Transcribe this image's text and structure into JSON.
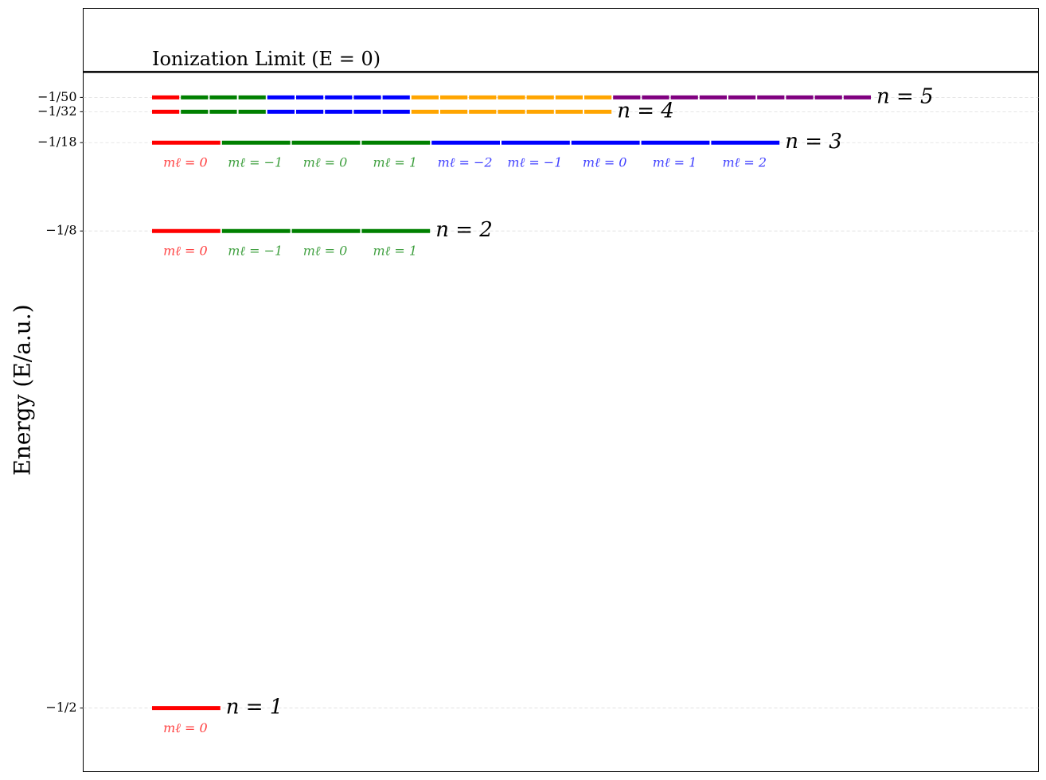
{
  "chart_data": {
    "type": "energy-levels",
    "y_label": "Energy (E/a.u.)",
    "ylim": [
      -0.55,
      0.05
    ],
    "yticks": [
      {
        "value": -0.5,
        "label": "−1/2"
      },
      {
        "value": -0.125,
        "label": "−1/8"
      },
      {
        "value": -0.05555555555555555,
        "label": "−1/18"
      },
      {
        "value": -0.03125,
        "label": "−1/32"
      },
      {
        "value": -0.02,
        "label": "−1/50"
      }
    ],
    "grid": true,
    "ionization_limit": {
      "label": "Ionization Limit (E = 0)",
      "value": 0
    },
    "series": [
      {
        "name": "n = 1",
        "value": -0.5,
        "segment_colors": [
          "#ff0000"
        ],
        "m_labels": [
          "mℓ = 0"
        ]
      },
      {
        "name": "n = 2",
        "value": -0.125,
        "segment_colors": [
          "#ff0000",
          "#008000",
          "#008000",
          "#008000"
        ],
        "m_labels": [
          "mℓ = 0",
          "mℓ = −1",
          "mℓ = 0",
          "mℓ = 1"
        ]
      },
      {
        "name": "n = 3",
        "value": -0.05555555555555555,
        "segment_colors": [
          "#ff0000",
          "#008000",
          "#008000",
          "#008000",
          "#0000ff",
          "#0000ff",
          "#0000ff",
          "#0000ff",
          "#0000ff"
        ],
        "m_labels": [
          "mℓ = 0",
          "mℓ = −1",
          "mℓ = 0",
          "mℓ = 1",
          "mℓ = −2",
          "mℓ = −1",
          "mℓ = 0",
          "mℓ = 1",
          "mℓ = 2"
        ]
      },
      {
        "name": "n = 4",
        "value": -0.03125,
        "segment_colors": [
          "#ff0000",
          "#008000",
          "#008000",
          "#008000",
          "#0000ff",
          "#0000ff",
          "#0000ff",
          "#0000ff",
          "#0000ff",
          "#ffa500",
          "#ffa500",
          "#ffa500",
          "#ffa500",
          "#ffa500",
          "#ffa500",
          "#ffa500"
        ]
      },
      {
        "name": "n = 5",
        "value": -0.02,
        "segment_colors": [
          "#ff0000",
          "#008000",
          "#008000",
          "#008000",
          "#0000ff",
          "#0000ff",
          "#0000ff",
          "#0000ff",
          "#0000ff",
          "#ffa500",
          "#ffa500",
          "#ffa500",
          "#ffa500",
          "#ffa500",
          "#ffa500",
          "#ffa500",
          "#800080",
          "#800080",
          "#800080",
          "#800080",
          "#800080",
          "#800080",
          "#800080",
          "#800080",
          "#800080"
        ]
      }
    ]
  }
}
